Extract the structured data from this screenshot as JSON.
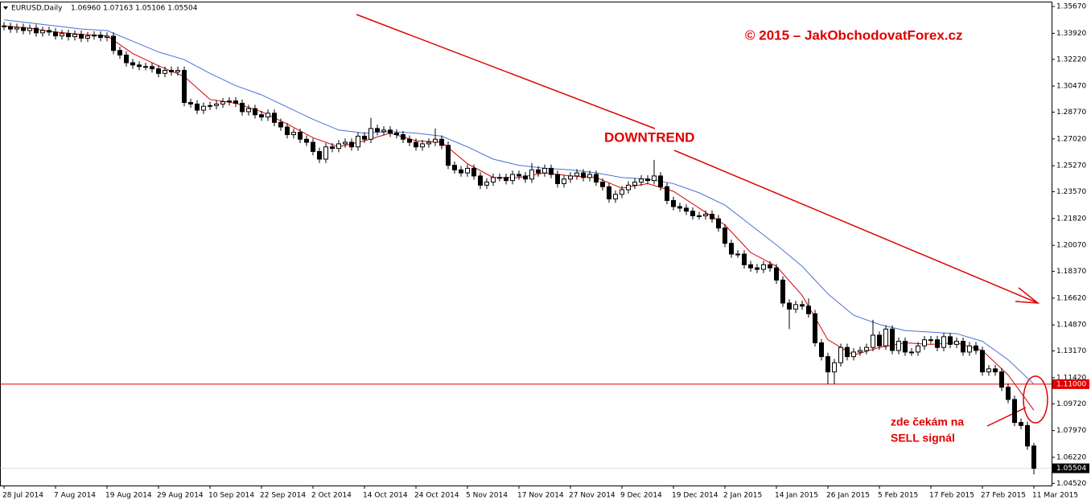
{
  "chart_data": {
    "type": "candlestick",
    "symbol": "EURUSD,Daily",
    "header_ohlc": "1.06960 1.07163 1.05106 1.05504",
    "copyright": "© 2015 – JakObchodovatForex.cz",
    "annotation_trend": "DOWNTREND",
    "annotation_signal": [
      "zde čekám na",
      "SELL signál"
    ],
    "categories": [
      "28 Jul 2014",
      null,
      null,
      null,
      null,
      null,
      null,
      null,
      "7 Aug 2014",
      null,
      null,
      null,
      null,
      null,
      null,
      null,
      "19 Aug 2014",
      null,
      null,
      null,
      null,
      null,
      null,
      null,
      "29 Aug 2014",
      null,
      null,
      null,
      null,
      null,
      null,
      null,
      "10 Sep 2014",
      null,
      null,
      null,
      null,
      null,
      null,
      null,
      "22 Sep 2014",
      null,
      null,
      null,
      null,
      null,
      null,
      null,
      "2 Oct 2014",
      null,
      null,
      null,
      null,
      null,
      null,
      null,
      "14 Oct 2014",
      null,
      null,
      null,
      null,
      null,
      null,
      null,
      "24 Oct 2014",
      null,
      null,
      null,
      null,
      null,
      null,
      null,
      "5 Nov 2014",
      null,
      null,
      null,
      null,
      null,
      null,
      null,
      "17 Nov 2014",
      null,
      null,
      null,
      null,
      null,
      null,
      null,
      "27 Nov 2014",
      null,
      null,
      null,
      null,
      null,
      null,
      null,
      "9 Dec 2014",
      null,
      null,
      null,
      null,
      null,
      null,
      null,
      "19 Dec 2014",
      null,
      null,
      null,
      null,
      null,
      null,
      null,
      "2 Jan 2015",
      null,
      null,
      null,
      null,
      null,
      null,
      null,
      "14 Jan 2015",
      null,
      null,
      null,
      null,
      null,
      null,
      null,
      "26 Jan 2015",
      null,
      null,
      null,
      null,
      null,
      null,
      null,
      "5 Feb 2015",
      null,
      null,
      null,
      null,
      null,
      null,
      null,
      "17 Feb 2015",
      null,
      null,
      null,
      null,
      null,
      null,
      null,
      "27 Feb 2015",
      null,
      null,
      null,
      null,
      null,
      null,
      null,
      "11 Mar 2015"
    ],
    "open": [
      1.344,
      1.3436,
      1.342,
      1.343,
      1.341,
      1.3425,
      1.3395,
      1.341,
      1.34,
      1.3375,
      1.339,
      1.337,
      1.3385,
      1.336,
      1.3375,
      1.338,
      1.3365,
      1.3373,
      1.328,
      1.325,
      1.32,
      1.3185,
      1.3175,
      1.3175,
      1.316,
      1.313,
      1.315,
      1.314,
      1.315,
      1.294,
      1.293,
      1.289,
      1.2915,
      1.292,
      1.293,
      1.2945,
      1.295,
      1.2935,
      1.288,
      1.29,
      1.286,
      1.2845,
      1.287,
      1.281,
      1.278,
      1.273,
      1.2745,
      1.27,
      1.268,
      1.262,
      1.257,
      1.265,
      1.264,
      1.267,
      1.268,
      1.265,
      1.272,
      1.27,
      1.277,
      1.275,
      1.276,
      1.274,
      1.273,
      1.27,
      1.268,
      1.265,
      1.267,
      1.268,
      1.27,
      1.266,
      1.253,
      1.25,
      1.248,
      1.251,
      1.246,
      1.24,
      1.242,
      1.245,
      1.245,
      1.243,
      1.247,
      1.246,
      1.244,
      1.25,
      1.248,
      1.251,
      1.247,
      1.241,
      1.244,
      1.246,
      1.248,
      1.245,
      1.247,
      1.242,
      1.239,
      1.231,
      1.234,
      1.237,
      1.24,
      1.242,
      1.244,
      1.243,
      1.246,
      1.239,
      1.23,
      1.226,
      1.225,
      1.223,
      1.22,
      1.22,
      1.221,
      1.218,
      1.212,
      1.202,
      1.195,
      1.195,
      1.188,
      1.186,
      1.185,
      1.188,
      1.186,
      1.178,
      1.163,
      1.159,
      1.162,
      1.161,
      1.156,
      1.137,
      1.128,
      1.118,
      1.124,
      1.134,
      1.128,
      1.131,
      1.132,
      1.134,
      1.142,
      1.135,
      1.146,
      1.132,
      1.138,
      1.131,
      1.131,
      1.135,
      1.139,
      1.139,
      1.134,
      1.141,
      1.136,
      1.138,
      1.131,
      1.135,
      1.132,
      1.118,
      1.12,
      1.118,
      1.108,
      1.1,
      1.085,
      1.083,
      1.0696
    ],
    "high": [
      1.3465,
      1.3461,
      1.3455,
      1.3455,
      1.345,
      1.345,
      1.3435,
      1.3435,
      1.3425,
      1.3415,
      1.3415,
      1.341,
      1.341,
      1.34,
      1.3405,
      1.3405,
      1.3398,
      1.3398,
      1.3305,
      1.3275,
      1.3225,
      1.321,
      1.32,
      1.32,
      1.3185,
      1.3175,
      1.3175,
      1.3175,
      1.3175,
      1.2965,
      1.2955,
      1.294,
      1.2945,
      1.2955,
      1.297,
      1.2975,
      1.2975,
      1.296,
      1.2925,
      1.2925,
      1.2885,
      1.2895,
      1.2895,
      1.2835,
      1.2805,
      1.277,
      1.277,
      1.2725,
      1.2705,
      1.2645,
      1.2675,
      1.2675,
      1.2695,
      1.2705,
      1.2705,
      1.2745,
      1.2745,
      1.284,
      1.2795,
      1.2785,
      1.2785,
      1.2765,
      1.2755,
      1.2725,
      1.2705,
      1.2695,
      1.2705,
      1.277,
      1.2725,
      1.2685,
      1.2555,
      1.2525,
      1.2535,
      1.2535,
      1.2485,
      1.2445,
      1.2475,
      1.2475,
      1.2475,
      1.2495,
      1.2495,
      1.2485,
      1.2545,
      1.2525,
      1.2535,
      1.2535,
      1.2495,
      1.2465,
      1.2485,
      1.2505,
      1.2505,
      1.2495,
      1.2495,
      1.2445,
      1.2415,
      1.2365,
      1.2395,
      1.2425,
      1.2445,
      1.2465,
      1.2465,
      1.2565,
      1.2485,
      1.2415,
      1.2325,
      1.2285,
      1.2275,
      1.2255,
      1.2225,
      1.2235,
      1.2235,
      1.2205,
      1.2145,
      1.2045,
      1.1975,
      1.1975,
      1.1905,
      1.1885,
      1.1905,
      1.1905,
      1.1885,
      1.1805,
      1.1655,
      1.1645,
      1.1645,
      1.166,
      1.1585,
      1.1395,
      1.1305,
      1.1265,
      1.1365,
      1.1365,
      1.1335,
      1.1345,
      1.1365,
      1.152,
      1.1445,
      1.1485,
      1.1485,
      1.1405,
      1.1405,
      1.1335,
      1.1375,
      1.1415,
      1.1415,
      1.1415,
      1.1435,
      1.1435,
      1.1405,
      1.1405,
      1.1375,
      1.1375,
      1.1345,
      1.1225,
      1.1225,
      1.1205,
      1.1105,
      1.1025,
      1.0875,
      1.0855,
      1.07163
    ],
    "low": [
      1.3411,
      1.3395,
      1.3395,
      1.3385,
      1.3385,
      1.337,
      1.337,
      1.3375,
      1.335,
      1.335,
      1.3345,
      1.3345,
      1.3335,
      1.3335,
      1.335,
      1.334,
      1.334,
      1.3255,
      1.3225,
      1.3175,
      1.316,
      1.315,
      1.315,
      1.3135,
      1.3105,
      1.3105,
      1.3115,
      1.3115,
      1.2915,
      1.2905,
      1.2865,
      1.2865,
      1.289,
      1.2895,
      1.2905,
      1.292,
      1.291,
      1.2855,
      1.2855,
      1.2835,
      1.282,
      1.282,
      1.2785,
      1.2755,
      1.2705,
      1.2705,
      1.2675,
      1.2655,
      1.2595,
      1.2545,
      1.2545,
      1.2615,
      1.2615,
      1.2645,
      1.2625,
      1.2625,
      1.2675,
      1.2675,
      1.2725,
      1.2725,
      1.2715,
      1.2705,
      1.2675,
      1.2655,
      1.2625,
      1.2625,
      1.2645,
      1.2655,
      1.2635,
      1.2505,
      1.2475,
      1.2455,
      1.2455,
      1.2435,
      1.2375,
      1.2375,
      1.2395,
      1.2425,
      1.2405,
      1.2405,
      1.2435,
      1.2415,
      1.2415,
      1.2455,
      1.2455,
      1.2445,
      1.2385,
      1.2385,
      1.2415,
      1.2435,
      1.2425,
      1.2425,
      1.2395,
      1.2365,
      1.2285,
      1.2285,
      1.2315,
      1.2345,
      1.2375,
      1.2395,
      1.2405,
      1.2405,
      1.2365,
      1.2275,
      1.2235,
      1.2225,
      1.2205,
      1.2175,
      1.2175,
      1.2175,
      1.2155,
      1.2095,
      1.1995,
      1.1925,
      1.1925,
      1.1855,
      1.1835,
      1.1825,
      1.1825,
      1.1835,
      1.1755,
      1.1605,
      1.146,
      1.1565,
      1.1585,
      1.1535,
      1.1345,
      1.1255,
      1.11,
      1.11,
      1.1215,
      1.1255,
      1.1255,
      1.1285,
      1.1295,
      1.1315,
      1.1325,
      1.1325,
      1.1295,
      1.1295,
      1.1285,
      1.1285,
      1.1285,
      1.1325,
      1.1365,
      1.1315,
      1.1315,
      1.1335,
      1.1335,
      1.1285,
      1.1285,
      1.1295,
      1.1155,
      1.1155,
      1.1155,
      1.1055,
      1.0975,
      1.0825,
      1.0805,
      1.0671,
      1.05106
    ],
    "close": [
      1.3436,
      1.342,
      1.343,
      1.341,
      1.3425,
      1.3395,
      1.341,
      1.34,
      1.3375,
      1.339,
      1.337,
      1.3385,
      1.336,
      1.3375,
      1.338,
      1.3365,
      1.3373,
      1.328,
      1.325,
      1.32,
      1.3185,
      1.3175,
      1.3175,
      1.316,
      1.313,
      1.315,
      1.314,
      1.315,
      1.294,
      1.293,
      1.289,
      1.2915,
      1.292,
      1.293,
      1.2945,
      1.295,
      1.2935,
      1.288,
      1.29,
      1.286,
      1.2845,
      1.287,
      1.281,
      1.278,
      1.273,
      1.2745,
      1.27,
      1.268,
      1.262,
      1.257,
      1.265,
      1.264,
      1.267,
      1.268,
      1.265,
      1.272,
      1.27,
      1.277,
      1.275,
      1.276,
      1.274,
      1.273,
      1.27,
      1.268,
      1.265,
      1.267,
      1.268,
      1.27,
      1.266,
      1.253,
      1.25,
      1.248,
      1.251,
      1.246,
      1.24,
      1.242,
      1.245,
      1.245,
      1.243,
      1.247,
      1.246,
      1.244,
      1.25,
      1.248,
      1.251,
      1.247,
      1.241,
      1.244,
      1.246,
      1.248,
      1.245,
      1.247,
      1.242,
      1.239,
      1.231,
      1.234,
      1.237,
      1.24,
      1.242,
      1.244,
      1.243,
      1.246,
      1.239,
      1.23,
      1.226,
      1.225,
      1.223,
      1.22,
      1.22,
      1.221,
      1.218,
      1.212,
      1.202,
      1.195,
      1.195,
      1.188,
      1.186,
      1.185,
      1.188,
      1.186,
      1.178,
      1.163,
      1.159,
      1.162,
      1.161,
      1.156,
      1.137,
      1.128,
      1.118,
      1.124,
      1.134,
      1.128,
      1.131,
      1.132,
      1.134,
      1.142,
      1.135,
      1.146,
      1.132,
      1.138,
      1.131,
      1.131,
      1.135,
      1.139,
      1.139,
      1.134,
      1.141,
      1.136,
      1.138,
      1.131,
      1.135,
      1.132,
      1.118,
      1.12,
      1.118,
      1.108,
      1.1,
      1.085,
      1.083,
      1.0696,
      1.05504
    ],
    "indicator_x": [
      0,
      4,
      8,
      12,
      16,
      20,
      24,
      28,
      32,
      36,
      40,
      44,
      48,
      52,
      56,
      60,
      64,
      68,
      72,
      76,
      80,
      84,
      88,
      92,
      96,
      100,
      104,
      108,
      112,
      116,
      120,
      124,
      128,
      132,
      136,
      140,
      144,
      148,
      152,
      156,
      160
    ],
    "indicators": [
      {
        "color": "#4b6fd8",
        "values": [
          1.348,
          1.346,
          1.344,
          1.342,
          1.341,
          1.334,
          1.327,
          1.322,
          1.313,
          1.305,
          1.299,
          1.291,
          1.283,
          1.276,
          1.274,
          1.275,
          1.274,
          1.272,
          1.265,
          1.257,
          1.253,
          1.251,
          1.25,
          1.248,
          1.245,
          1.244,
          1.241,
          1.235,
          1.227,
          1.214,
          1.201,
          1.187,
          1.169,
          1.155,
          1.149,
          1.145,
          1.144,
          1.143,
          1.138,
          1.126,
          1.11
        ]
      },
      {
        "color": "#d80000",
        "values": [
          1.344,
          1.3425,
          1.34,
          1.3385,
          1.3375,
          1.326,
          1.318,
          1.311,
          1.296,
          1.2935,
          1.288,
          1.28,
          1.271,
          1.265,
          1.269,
          1.274,
          1.269,
          1.268,
          1.254,
          1.245,
          1.245,
          1.248,
          1.246,
          1.245,
          1.238,
          1.241,
          1.236,
          1.225,
          1.214,
          1.196,
          1.187,
          1.168,
          1.139,
          1.129,
          1.134,
          1.137,
          1.136,
          1.137,
          1.132,
          1.116,
          1.093
        ]
      }
    ],
    "hline": {
      "value": 1.11,
      "label": "1.11000",
      "color": "#e00000"
    },
    "last_price": {
      "value": 1.05504,
      "label": "1.05504"
    },
    "ylim": [
      1.0438,
      1.3599
    ],
    "yticks": [
      {
        "value": 1.3567,
        "label": "1.35670"
      },
      {
        "value": 1.3392,
        "label": "1.33920"
      },
      {
        "value": 1.3222,
        "label": "1.32220"
      },
      {
        "value": 1.3047,
        "label": "1.30470"
      },
      {
        "value": 1.2877,
        "label": "1.28770"
      },
      {
        "value": 1.2702,
        "label": "1.27020"
      },
      {
        "value": 1.2527,
        "label": "1.25270"
      },
      {
        "value": 1.2357,
        "label": "1.23570"
      },
      {
        "value": 1.2182,
        "label": "1.21820"
      },
      {
        "value": 1.2007,
        "label": "1.20070"
      },
      {
        "value": 1.1837,
        "label": "1.18370"
      },
      {
        "value": 1.1662,
        "label": "1.16620"
      },
      {
        "value": 1.1487,
        "label": "1.14870"
      },
      {
        "value": 1.1317,
        "label": "1.13170"
      },
      {
        "value": 1.1142,
        "label": "1.11420"
      },
      {
        "value": 1.0972,
        "label": "1.09720"
      },
      {
        "value": 1.0797,
        "label": "1.07970"
      },
      {
        "value": 1.0622,
        "label": "1.06220"
      },
      {
        "value": 1.0452,
        "label": "1.04520"
      }
    ],
    "bull_color": "#ffffff",
    "bear_color": "#000000"
  }
}
